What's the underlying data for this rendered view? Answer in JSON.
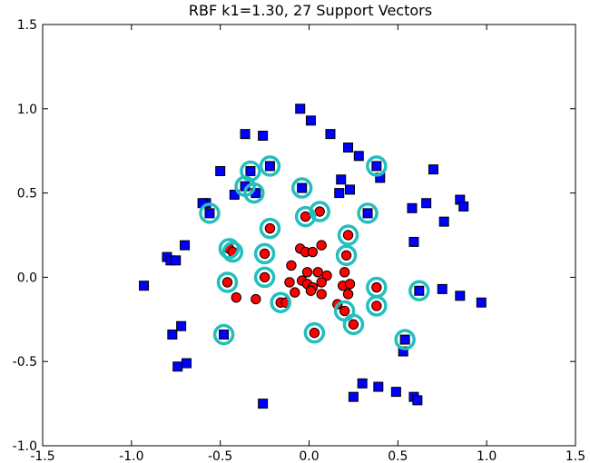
{
  "chart_data": {
    "type": "scatter",
    "title": "RBF k1=1.30, 27 Support Vectors",
    "xlabel": "",
    "ylabel": "",
    "xlim": [
      -1.5,
      1.5
    ],
    "ylim": [
      -1.0,
      1.5
    ],
    "xticks": [
      "-1.5",
      "-1.0",
      "-0.5",
      "0.0",
      "0.5",
      "1.0",
      "1.5"
    ],
    "yticks": [
      "-1.0",
      "-0.5",
      "0.0",
      "0.5",
      "1.0",
      "1.5"
    ],
    "grid": false,
    "colors": {
      "class_square": "#0000ff",
      "class_circle": "#ff0000",
      "support_vector_ring": "#22bfbf"
    },
    "series": [
      {
        "marker": "square",
        "points": [
          [
            -0.05,
            1.0
          ],
          [
            0.01,
            0.93
          ],
          [
            0.12,
            0.85
          ],
          [
            0.22,
            0.77
          ],
          [
            0.28,
            0.72
          ],
          [
            -0.36,
            0.85
          ],
          [
            -0.26,
            0.84
          ],
          [
            -0.5,
            0.63
          ],
          [
            -0.33,
            0.63
          ],
          [
            -0.22,
            0.66
          ],
          [
            -0.3,
            0.5
          ],
          [
            -0.36,
            0.54
          ],
          [
            -0.42,
            0.49
          ],
          [
            -0.58,
            0.44
          ],
          [
            -0.56,
            0.38
          ],
          [
            -0.6,
            0.44
          ],
          [
            -0.04,
            0.53
          ],
          [
            0.18,
            0.58
          ],
          [
            0.23,
            0.52
          ],
          [
            0.33,
            0.38
          ],
          [
            0.38,
            0.66
          ],
          [
            0.4,
            0.59
          ],
          [
            0.17,
            0.5
          ],
          [
            0.58,
            0.41
          ],
          [
            0.66,
            0.44
          ],
          [
            0.7,
            0.64
          ],
          [
            0.76,
            0.33
          ],
          [
            0.85,
            0.46
          ],
          [
            0.87,
            0.42
          ],
          [
            0.59,
            0.21
          ],
          [
            -0.7,
            0.19
          ],
          [
            -0.8,
            0.12
          ],
          [
            -0.78,
            0.1
          ],
          [
            -0.75,
            0.1
          ],
          [
            -0.93,
            -0.05
          ],
          [
            0.62,
            -0.08
          ],
          [
            0.75,
            -0.07
          ],
          [
            0.85,
            -0.11
          ],
          [
            0.97,
            -0.15
          ],
          [
            -0.48,
            -0.34
          ],
          [
            -0.72,
            -0.29
          ],
          [
            -0.77,
            -0.34
          ],
          [
            -0.74,
            -0.53
          ],
          [
            -0.69,
            -0.51
          ],
          [
            0.54,
            -0.37
          ],
          [
            0.53,
            -0.44
          ],
          [
            0.3,
            -0.63
          ],
          [
            0.25,
            -0.71
          ],
          [
            0.39,
            -0.65
          ],
          [
            0.49,
            -0.68
          ],
          [
            0.59,
            -0.71
          ],
          [
            0.61,
            -0.73
          ],
          [
            -0.26,
            -0.75
          ]
        ]
      },
      {
        "marker": "circle",
        "points": [
          [
            -0.22,
            0.29
          ],
          [
            -0.02,
            0.36
          ],
          [
            0.06,
            0.39
          ],
          [
            0.22,
            0.25
          ],
          [
            -0.25,
            0.14
          ],
          [
            -0.45,
            0.17
          ],
          [
            -0.43,
            0.15
          ],
          [
            0.21,
            0.13
          ],
          [
            -0.05,
            0.17
          ],
          [
            -0.02,
            0.15
          ],
          [
            0.02,
            0.15
          ],
          [
            0.07,
            0.19
          ],
          [
            -0.1,
            0.07
          ],
          [
            -0.01,
            0.03
          ],
          [
            0.05,
            0.03
          ],
          [
            0.1,
            0.01
          ],
          [
            0.2,
            0.03
          ],
          [
            -0.25,
            0.0
          ],
          [
            -0.46,
            -0.03
          ],
          [
            -0.11,
            -0.03
          ],
          [
            -0.04,
            -0.02
          ],
          [
            -0.01,
            -0.04
          ],
          [
            0.02,
            -0.06
          ],
          [
            0.07,
            -0.03
          ],
          [
            0.19,
            -0.05
          ],
          [
            0.23,
            -0.04
          ],
          [
            0.38,
            -0.06
          ],
          [
            -0.41,
            -0.12
          ],
          [
            -0.3,
            -0.13
          ],
          [
            -0.16,
            -0.15
          ],
          [
            -0.08,
            -0.09
          ],
          [
            0.01,
            -0.08
          ],
          [
            0.07,
            -0.1
          ],
          [
            0.22,
            -0.1
          ],
          [
            0.16,
            -0.16
          ],
          [
            0.2,
            -0.2
          ],
          [
            0.38,
            -0.17
          ],
          [
            0.25,
            -0.28
          ],
          [
            0.03,
            -0.33
          ],
          [
            -0.13,
            -0.15
          ]
        ]
      }
    ],
    "support_vectors": [
      [
        -0.33,
        0.63
      ],
      [
        -0.22,
        0.66
      ],
      [
        -0.36,
        0.54
      ],
      [
        -0.31,
        0.5
      ],
      [
        -0.56,
        0.38
      ],
      [
        -0.04,
        0.53
      ],
      [
        0.38,
        0.66
      ],
      [
        0.33,
        0.38
      ],
      [
        -0.22,
        0.29
      ],
      [
        -0.02,
        0.36
      ],
      [
        0.06,
        0.39
      ],
      [
        0.22,
        0.25
      ],
      [
        -0.45,
        0.17
      ],
      [
        -0.43,
        0.15
      ],
      [
        -0.25,
        0.14
      ],
      [
        0.21,
        0.13
      ],
      [
        -0.25,
        0.0
      ],
      [
        -0.46,
        -0.03
      ],
      [
        0.38,
        -0.06
      ],
      [
        0.62,
        -0.08
      ],
      [
        -0.16,
        -0.15
      ],
      [
        0.2,
        -0.2
      ],
      [
        0.38,
        -0.17
      ],
      [
        0.25,
        -0.28
      ],
      [
        0.03,
        -0.33
      ],
      [
        -0.48,
        -0.34
      ],
      [
        0.54,
        -0.37
      ]
    ]
  }
}
